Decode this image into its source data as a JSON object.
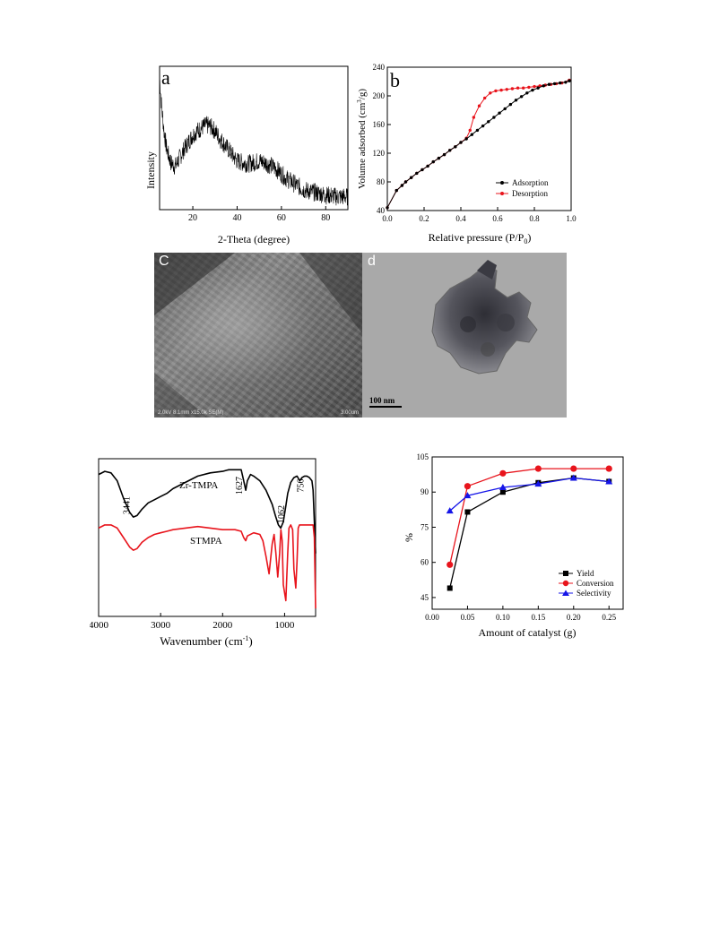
{
  "chart_data": [
    {
      "id": "a",
      "type": "line",
      "panel_label": "a",
      "xlabel": "2-Theta (degree)",
      "ylabel": "Intensity",
      "xlim": [
        5,
        90
      ],
      "xticks": [
        "20",
        "40",
        "60",
        "80"
      ],
      "series": [
        {
          "x": [
            5,
            6,
            7,
            8,
            9,
            10,
            12,
            14,
            16,
            18,
            20,
            22,
            24,
            26,
            28,
            30,
            32,
            35,
            38,
            40,
            42,
            45,
            48,
            50,
            52,
            55,
            58,
            60,
            62,
            65,
            68,
            70,
            72,
            75,
            78,
            80,
            82,
            85,
            88,
            90
          ],
          "y": [
            0.92,
            0.7,
            0.55,
            0.44,
            0.38,
            0.33,
            0.3,
            0.36,
            0.42,
            0.47,
            0.52,
            0.55,
            0.57,
            0.59,
            0.58,
            0.55,
            0.5,
            0.44,
            0.38,
            0.34,
            0.33,
            0.32,
            0.33,
            0.34,
            0.33,
            0.31,
            0.28,
            0.25,
            0.22,
            0.19,
            0.16,
            0.14,
            0.13,
            0.12,
            0.11,
            0.1,
            0.1,
            0.09,
            0.09,
            0.09
          ]
        }
      ]
    },
    {
      "id": "b",
      "type": "line",
      "panel_label": "b",
      "xlabel": "Relative pressure (P/P0)",
      "ylabel": "Volume adsorbed (cm3/g)",
      "xlim": [
        0,
        1.0
      ],
      "ylim": [
        40,
        240
      ],
      "xticks": [
        "0.0",
        "0.2",
        "0.4",
        "0.6",
        "0.8",
        "1.0"
      ],
      "yticks": [
        "40",
        "80",
        "120",
        "160",
        "200",
        "240"
      ],
      "legend_position": "bottom-right",
      "series": [
        {
          "name": "Adsorption",
          "color": "#000000",
          "x": [
            0.0,
            0.05,
            0.08,
            0.1,
            0.13,
            0.16,
            0.19,
            0.22,
            0.25,
            0.28,
            0.31,
            0.34,
            0.37,
            0.4,
            0.43,
            0.46,
            0.49,
            0.52,
            0.55,
            0.58,
            0.61,
            0.64,
            0.67,
            0.7,
            0.73,
            0.76,
            0.79,
            0.82,
            0.85,
            0.88,
            0.91,
            0.94,
            0.97,
            0.99
          ],
          "y": [
            44,
            68,
            75,
            80,
            86,
            92,
            97,
            102,
            108,
            113,
            118,
            124,
            129,
            135,
            140,
            146,
            152,
            158,
            164,
            170,
            176,
            182,
            188,
            194,
            199,
            204,
            208,
            211,
            214,
            216,
            217,
            218,
            219,
            221
          ]
        },
        {
          "name": "Desorption",
          "color": "#e8141c",
          "x": [
            0.0,
            0.05,
            0.08,
            0.1,
            0.13,
            0.16,
            0.19,
            0.22,
            0.25,
            0.28,
            0.31,
            0.34,
            0.37,
            0.4,
            0.43,
            0.45,
            0.47,
            0.5,
            0.53,
            0.56,
            0.59,
            0.62,
            0.65,
            0.68,
            0.71,
            0.74,
            0.77,
            0.8,
            0.83,
            0.86,
            0.89,
            0.92,
            0.95,
            0.99
          ],
          "y": [
            44,
            68,
            75,
            80,
            86,
            92,
            97,
            102,
            108,
            113,
            118,
            124,
            129,
            135,
            141,
            152,
            170,
            186,
            197,
            204,
            207,
            208,
            209,
            210,
            211,
            211,
            212,
            213,
            214,
            215,
            216,
            217,
            218,
            222
          ]
        }
      ]
    },
    {
      "id": "ftir",
      "type": "line",
      "xlabel": "Wavenumber (cm-1)",
      "xlim": [
        4000,
        500
      ],
      "xticks": [
        "4000",
        "3000",
        "2000",
        "1000"
      ],
      "annotations": [
        "3441",
        "1627",
        "1062",
        "756"
      ],
      "series": [
        {
          "name": "Zr-TMPA",
          "color": "#000000",
          "x": [
            4000,
            3900,
            3800,
            3700,
            3600,
            3500,
            3441,
            3380,
            3300,
            3200,
            3100,
            3000,
            2900,
            2800,
            2600,
            2400,
            2200,
            2000,
            1900,
            1800,
            1700,
            1660,
            1627,
            1600,
            1550,
            1500,
            1400,
            1300,
            1200,
            1150,
            1100,
            1062,
            1020,
            980,
            950,
            900,
            850,
            800,
            756,
            720,
            680,
            640,
            600,
            560,
            540,
            520,
            500
          ],
          "y": [
            0.9,
            0.92,
            0.91,
            0.86,
            0.75,
            0.66,
            0.63,
            0.64,
            0.68,
            0.72,
            0.74,
            0.76,
            0.78,
            0.81,
            0.85,
            0.89,
            0.91,
            0.92,
            0.93,
            0.93,
            0.93,
            0.86,
            0.8,
            0.86,
            0.9,
            0.89,
            0.86,
            0.8,
            0.71,
            0.64,
            0.58,
            0.56,
            0.6,
            0.7,
            0.78,
            0.85,
            0.88,
            0.89,
            0.86,
            0.88,
            0.89,
            0.89,
            0.88,
            0.86,
            0.8,
            0.6,
            0.4
          ]
        },
        {
          "name": "STMPA",
          "color": "#e8141c",
          "x": [
            4000,
            3900,
            3800,
            3700,
            3600,
            3500,
            3441,
            3380,
            3300,
            3200,
            3100,
            3000,
            2900,
            2800,
            2600,
            2400,
            2200,
            2000,
            1900,
            1800,
            1700,
            1660,
            1627,
            1600,
            1500,
            1400,
            1350,
            1300,
            1250,
            1200,
            1170,
            1140,
            1110,
            1080,
            1060,
            1040,
            1020,
            980,
            950,
            930,
            900,
            870,
            850,
            820,
            800,
            780,
            760,
            740,
            720,
            700,
            680,
            650,
            620,
            600,
            580,
            560,
            540,
            520,
            500
          ],
          "y": [
            0.56,
            0.58,
            0.58,
            0.56,
            0.5,
            0.44,
            0.42,
            0.43,
            0.47,
            0.5,
            0.52,
            0.53,
            0.54,
            0.55,
            0.56,
            0.57,
            0.56,
            0.55,
            0.55,
            0.55,
            0.54,
            0.5,
            0.48,
            0.51,
            0.53,
            0.52,
            0.48,
            0.38,
            0.27,
            0.46,
            0.52,
            0.4,
            0.25,
            0.4,
            0.55,
            0.48,
            0.2,
            0.1,
            0.4,
            0.56,
            0.58,
            0.55,
            0.3,
            0.18,
            0.35,
            0.56,
            0.58,
            0.58,
            0.58,
            0.58,
            0.58,
            0.58,
            0.58,
            0.58,
            0.58,
            0.58,
            0.58,
            0.5,
            0.05
          ]
        }
      ],
      "labels": [
        {
          "text": "Zr-TMPA"
        },
        {
          "text": "STMPA"
        }
      ]
    },
    {
      "id": "catalyst",
      "type": "line",
      "xlabel": "Amount of catalyst (g)",
      "ylabel": "%",
      "xlim": [
        0.0,
        0.27
      ],
      "ylim": [
        40,
        105
      ],
      "xticks": [
        "0.00",
        "0.05",
        "0.10",
        "0.15",
        "0.20",
        "0.25"
      ],
      "yticks": [
        "45",
        "60",
        "75",
        "90",
        "105"
      ],
      "legend_position": "bottom-right",
      "series": [
        {
          "name": "Yield",
          "color": "#000000",
          "marker": "square",
          "x": [
            0.025,
            0.05,
            0.1,
            0.15,
            0.2,
            0.25
          ],
          "y": [
            49,
            81.5,
            90,
            94,
            96,
            94.5
          ]
        },
        {
          "name": "Conversion",
          "color": "#e8141c",
          "marker": "circle",
          "x": [
            0.025,
            0.05,
            0.1,
            0.15,
            0.2,
            0.25
          ],
          "y": [
            59,
            92.5,
            98,
            100,
            100,
            100
          ]
        },
        {
          "name": "Selectivity",
          "color": "#1515e8",
          "marker": "triangle",
          "x": [
            0.025,
            0.05,
            0.1,
            0.15,
            0.2,
            0.25
          ],
          "y": [
            82,
            88.5,
            92,
            93.5,
            96,
            94.5
          ]
        }
      ]
    }
  ],
  "micrographs": {
    "c": {
      "panel_label": "C",
      "footer": "2.0kV 8.1mm x15.0k SE(M)",
      "scale": "3.00um"
    },
    "d": {
      "panel_label": "d",
      "scale": "100 nm"
    }
  }
}
